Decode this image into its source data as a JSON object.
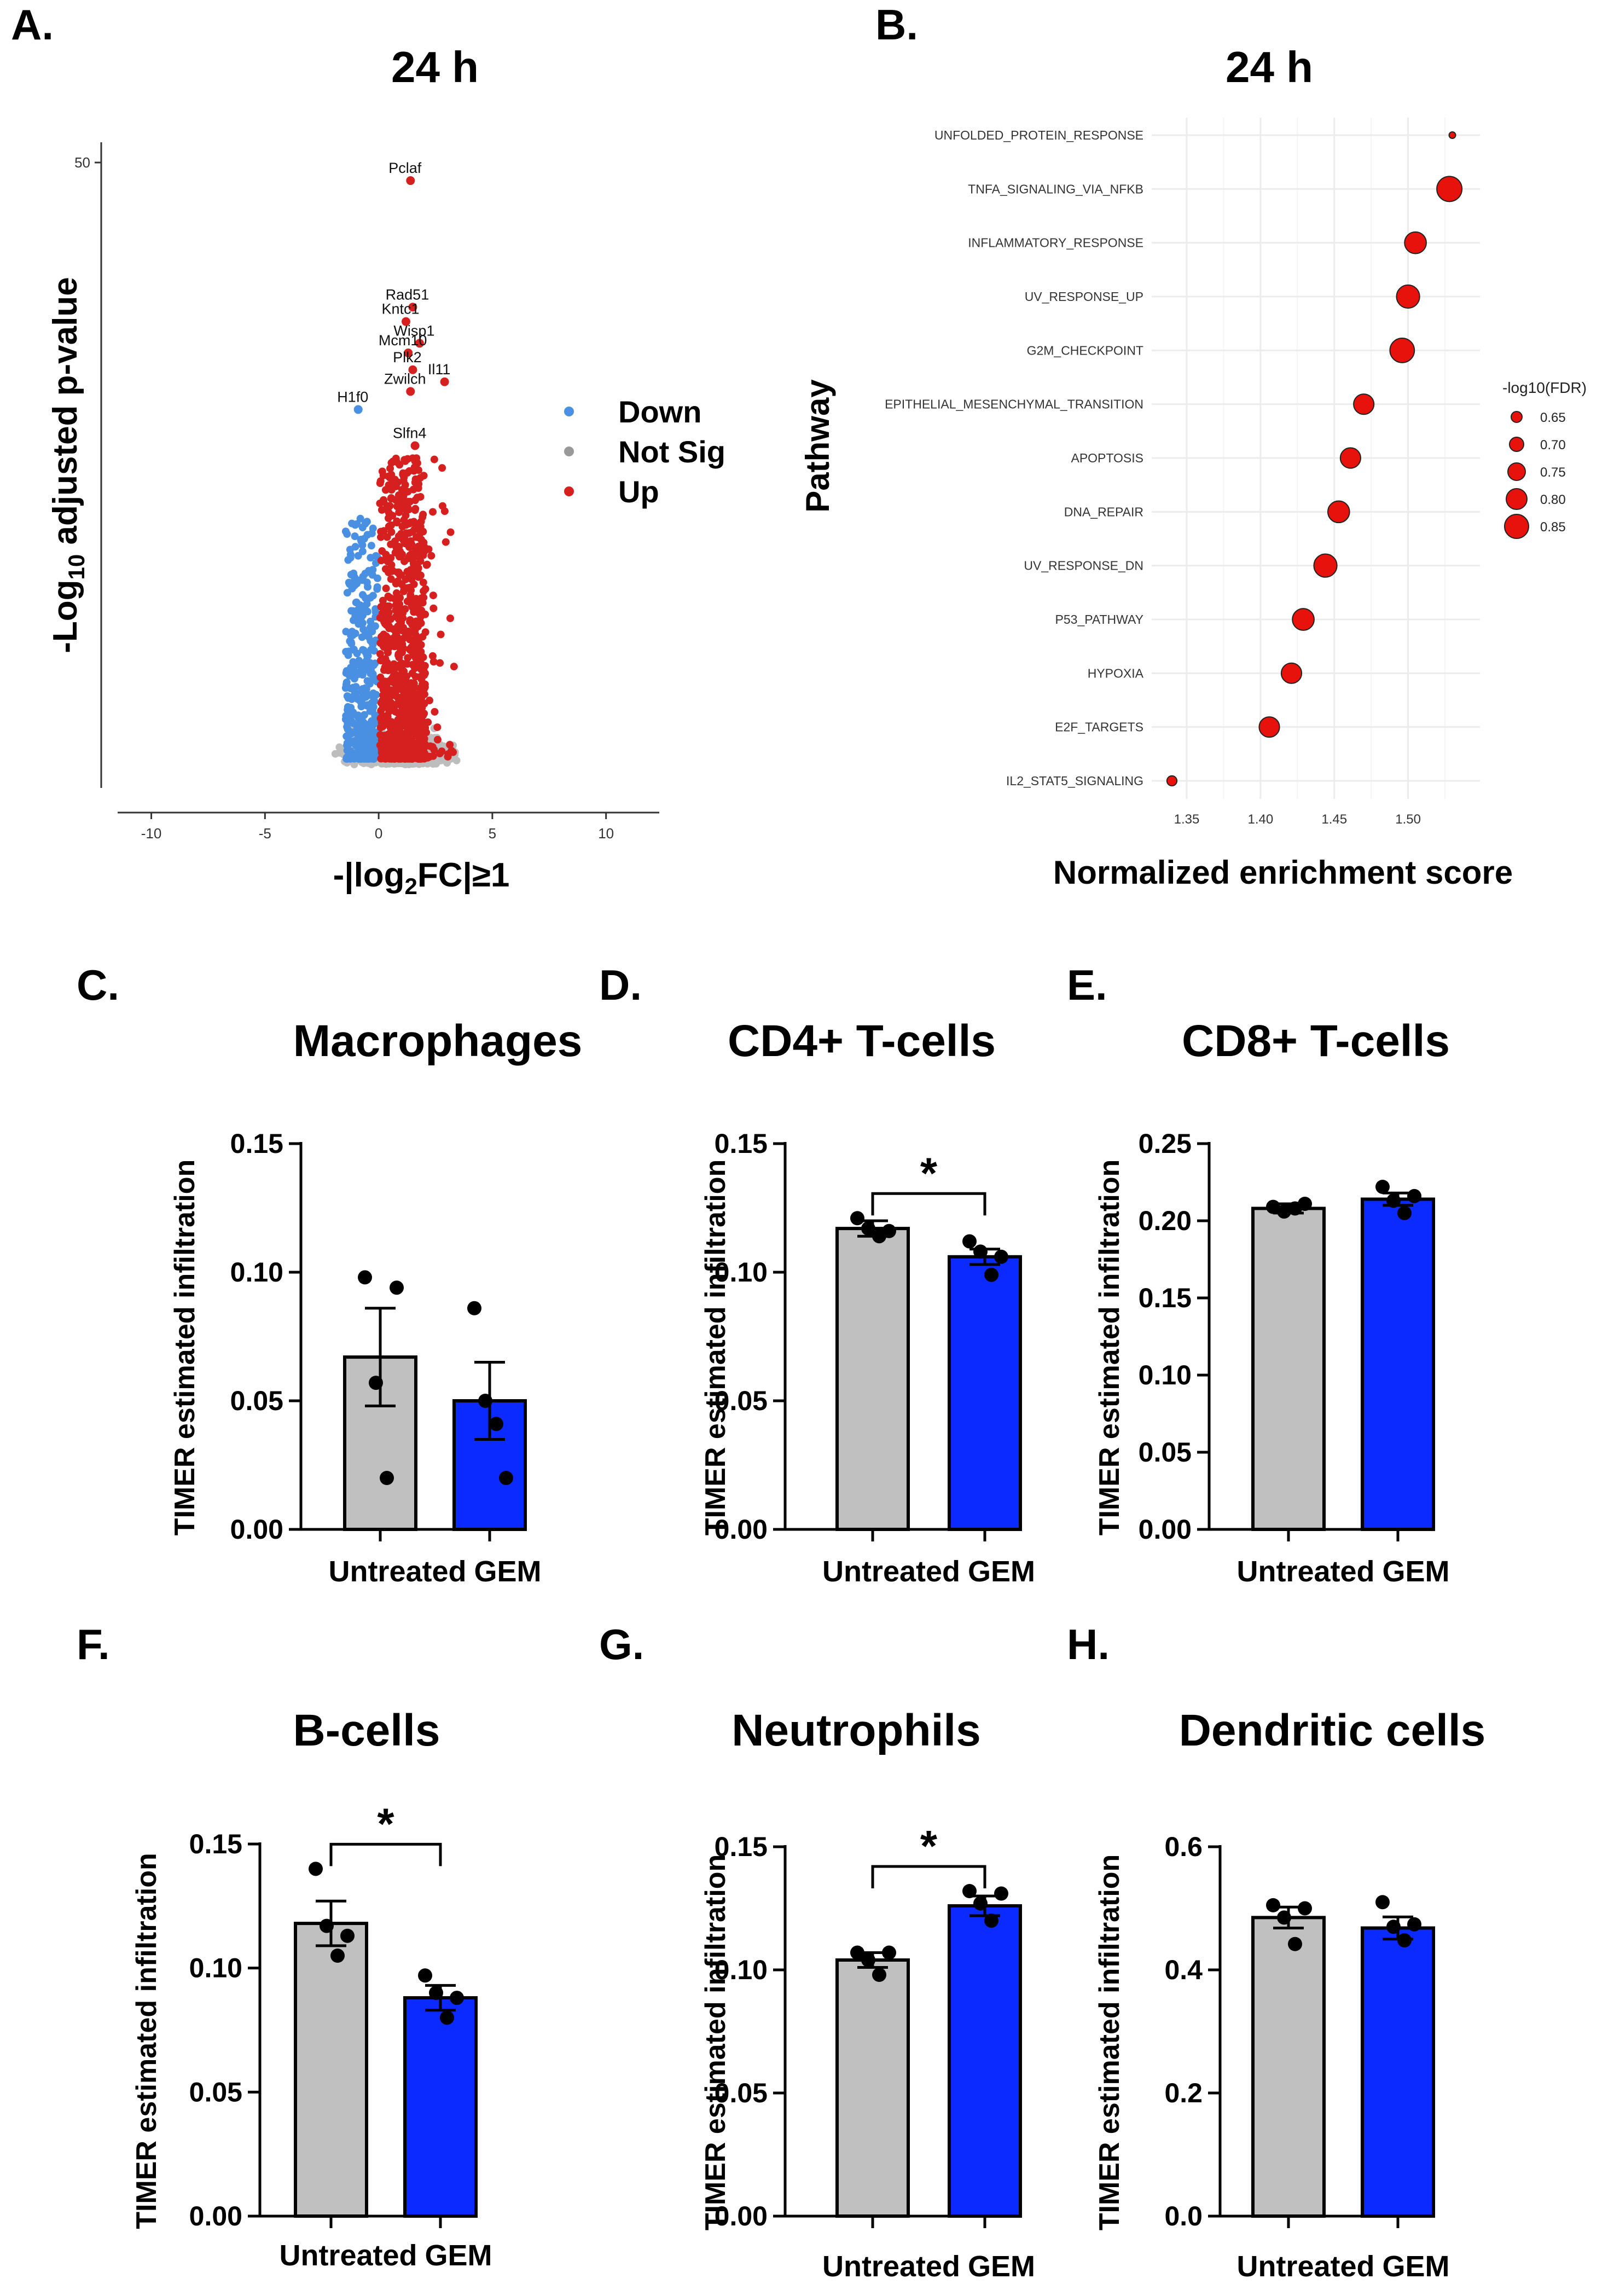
{
  "figure": {
    "panel_letters": [
      "A.",
      "B.",
      "C.",
      "D.",
      "E.",
      "F.",
      "G.",
      "H."
    ]
  },
  "colors": {
    "down": "#4a90e2",
    "not_sig": "#bdbdbd",
    "up": "#d62020",
    "untreated_bar": "#c0c0c0",
    "gem_bar": "#0a2aff",
    "enrich_dot": "#e8120c"
  },
  "chart_data": [
    {
      "id": "A",
      "type": "scatter",
      "title": "24 h",
      "xlabel": "-|log2FC|≥1",
      "xlabel_parts": {
        "pre": "-|log",
        "sub": "2",
        "post": "FC|≥1"
      },
      "ylabel": "-Log10 adjusted p-value",
      "ylabel_parts": {
        "pre": "-Log",
        "sub": "10",
        "post": " adjusted p-value"
      },
      "xlim": [
        -11,
        11.5
      ],
      "ylim": [
        -1,
        51
      ],
      "xticks": [
        -10,
        -5,
        0,
        5,
        10
      ],
      "yticks": [
        50
      ],
      "legend": {
        "position": "right",
        "items": [
          {
            "label": "Down",
            "color": "#4a90e2"
          },
          {
            "label": "Not Sig",
            "color": "#999999"
          },
          {
            "label": "Up",
            "color": "#d62020"
          }
        ]
      },
      "labeled_genes": [
        {
          "gene": "Pclaf",
          "x": 1.4,
          "y": 48.5
        },
        {
          "gene": "Rad51",
          "x": 1.5,
          "y": 38.0
        },
        {
          "gene": "Kntc1",
          "x": 1.2,
          "y": 36.8
        },
        {
          "gene": "Wisp1",
          "x": 1.8,
          "y": 35.0
        },
        {
          "gene": "Mcm10",
          "x": 1.3,
          "y": 34.2
        },
        {
          "gene": "Plk2",
          "x": 1.5,
          "y": 32.8
        },
        {
          "gene": "Il11",
          "x": 2.9,
          "y": 31.8
        },
        {
          "gene": "Zwilch",
          "x": 1.4,
          "y": 31.0
        },
        {
          "gene": "H1f0",
          "x": -0.9,
          "y": 29.5
        },
        {
          "gene": "Slfn4",
          "x": 1.6,
          "y": 26.5
        }
      ]
    },
    {
      "id": "B",
      "type": "scatter",
      "title": "24 h",
      "xlabel": "Normalized enrichment score",
      "ylabel": "Pathway",
      "xlim": [
        1.33,
        1.545
      ],
      "xticks": [
        "1.35",
        "1.40",
        "1.45",
        "1.50"
      ],
      "legend": {
        "title": "-log10(FDR)",
        "position": "right",
        "sizes": [
          "0.65",
          "0.70",
          "0.75",
          "0.80",
          "0.85"
        ]
      },
      "pathways": [
        {
          "name": "UNFOLDED_PROTEIN_RESPONSE",
          "nes": 1.53,
          "fdr": 0.6
        },
        {
          "name": "TNFA_SIGNALING_VIA_NFKB",
          "nes": 1.528,
          "fdr": 0.87
        },
        {
          "name": "INFLAMMATORY_RESPONSE",
          "nes": 1.505,
          "fdr": 0.82
        },
        {
          "name": "UV_RESPONSE_UP",
          "nes": 1.5,
          "fdr": 0.84
        },
        {
          "name": "G2M_CHECKPOINT",
          "nes": 1.496,
          "fdr": 0.86
        },
        {
          "name": "EPITHELIAL_MESENCHYMAL_TRANSITION",
          "nes": 1.47,
          "fdr": 0.8
        },
        {
          "name": "APOPTOSIS",
          "nes": 1.461,
          "fdr": 0.8
        },
        {
          "name": "DNA_REPAIR",
          "nes": 1.453,
          "fdr": 0.82
        },
        {
          "name": "UV_RESPONSE_DN",
          "nes": 1.444,
          "fdr": 0.84
        },
        {
          "name": "P53_PATHWAY",
          "nes": 1.429,
          "fdr": 0.82
        },
        {
          "name": "HYPOXIA",
          "nes": 1.421,
          "fdr": 0.8
        },
        {
          "name": "E2F_TARGETS",
          "nes": 1.406,
          "fdr": 0.8
        },
        {
          "name": "IL2_STAT5_SIGNALING",
          "nes": 1.34,
          "fdr": 0.65
        }
      ]
    },
    {
      "id": "C",
      "type": "bar",
      "title": "Macrophages",
      "ylabel": "TIMER estimated infiltration",
      "categories": [
        "Untreated",
        "GEM"
      ],
      "values": [
        0.067,
        0.05
      ],
      "sem": [
        0.019,
        0.015
      ],
      "points": [
        [
          0.098,
          0.057,
          0.02,
          0.094
        ],
        [
          0.086,
          0.05,
          0.041,
          0.02
        ]
      ],
      "ylim": [
        0,
        0.15
      ],
      "yticks": [
        "0.00",
        "0.05",
        "0.10",
        "0.15"
      ],
      "sig": ""
    },
    {
      "id": "D",
      "type": "bar",
      "title": "CD4+ T-cells",
      "ylabel": "TIMER estimated infiltration",
      "categories": [
        "Untreated",
        "GEM"
      ],
      "values": [
        0.117,
        0.106
      ],
      "sem": [
        0.003,
        0.003
      ],
      "points": [
        [
          0.121,
          0.117,
          0.114,
          0.116
        ],
        [
          0.112,
          0.108,
          0.099,
          0.106
        ]
      ],
      "ylim": [
        0,
        0.15
      ],
      "yticks": [
        "0.00",
        "0.05",
        "0.10",
        "0.15"
      ],
      "sig": "*"
    },
    {
      "id": "E",
      "type": "bar",
      "title": "CD8+ T-cells",
      "ylabel": "TIMER estimated infiltration",
      "categories": [
        "Untreated",
        "GEM"
      ],
      "values": [
        0.208,
        0.214
      ],
      "sem": [
        0.003,
        0.004
      ],
      "points": [
        [
          0.209,
          0.206,
          0.208,
          0.211
        ],
        [
          0.222,
          0.213,
          0.205,
          0.216
        ]
      ],
      "ylim": [
        0,
        0.25
      ],
      "yticks": [
        "0.00",
        "0.05",
        "0.10",
        "0.15",
        "0.20",
        "0.25"
      ],
      "sig": ""
    },
    {
      "id": "F",
      "type": "bar",
      "title": "B-cells",
      "ylabel": "TIMER estimated infiltration",
      "categories": [
        "Untreated",
        "GEM"
      ],
      "values": [
        0.118,
        0.088
      ],
      "sem": [
        0.009,
        0.005
      ],
      "points": [
        [
          0.14,
          0.117,
          0.105,
          0.113
        ],
        [
          0.097,
          0.09,
          0.08,
          0.088
        ]
      ],
      "ylim": [
        0,
        0.15
      ],
      "yticks": [
        "0.00",
        "0.05",
        "0.10",
        "0.15"
      ],
      "sig": "*"
    },
    {
      "id": "G",
      "type": "bar",
      "title": "Neutrophils",
      "ylabel": "TIMER estimated infiltration",
      "categories": [
        "Untreated",
        "GEM"
      ],
      "values": [
        0.104,
        0.126
      ],
      "sem": [
        0.003,
        0.004
      ],
      "points": [
        [
          0.107,
          0.104,
          0.098,
          0.107
        ],
        [
          0.132,
          0.127,
          0.12,
          0.131
        ]
      ],
      "ylim": [
        0,
        0.15
      ],
      "yticks": [
        "0.00",
        "0.05",
        "0.10",
        "0.15"
      ],
      "sig": "*"
    },
    {
      "id": "H",
      "type": "bar",
      "title": "Dendritic cells",
      "ylabel": "TIMER estimated infiltration",
      "categories": [
        "Untreated",
        "GEM"
      ],
      "values": [
        0.485,
        0.468
      ],
      "sem": [
        0.017,
        0.018
      ],
      "points": [
        [
          0.505,
          0.485,
          0.442,
          0.5
        ],
        [
          0.51,
          0.47,
          0.448,
          0.474
        ]
      ],
      "ylim": [
        0,
        0.6
      ],
      "yticks": [
        "0.0",
        "0.2",
        "0.4",
        "0.6"
      ],
      "sig": ""
    }
  ]
}
